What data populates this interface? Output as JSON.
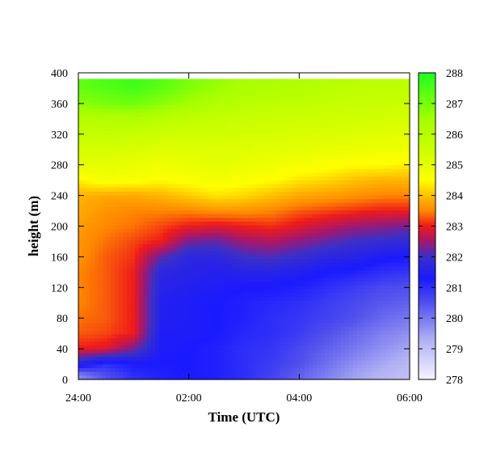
{
  "chart_data": {
    "type": "heatmap",
    "xlabel": "Time (UTC)",
    "ylabel": "height (m)",
    "x_ticks": [
      "24:00",
      "02:00",
      "04:00",
      "06:00"
    ],
    "x_range_hours": [
      0,
      6
    ],
    "y_ticks": [
      0,
      40,
      80,
      120,
      160,
      200,
      240,
      280,
      320,
      360,
      400
    ],
    "y_range": [
      0,
      400
    ],
    "colorbar": {
      "ticks": [
        278,
        279,
        280,
        281,
        282,
        283,
        284,
        285,
        286,
        287,
        288
      ],
      "range": [
        278,
        288
      ],
      "colormap": [
        {
          "value": 278.0,
          "color": "#f4f4ff"
        },
        {
          "value": 279.3,
          "color": "#b0b0f4"
        },
        {
          "value": 280.5,
          "color": "#5050ee"
        },
        {
          "value": 281.3,
          "color": "#1a1aff"
        },
        {
          "value": 282.0,
          "color": "#3a30c8"
        },
        {
          "value": 282.5,
          "color": "#a01870"
        },
        {
          "value": 283.0,
          "color": "#ee1a1a"
        },
        {
          "value": 283.5,
          "color": "#ff8800"
        },
        {
          "value": 284.0,
          "color": "#ffc000"
        },
        {
          "value": 284.5,
          "color": "#ffff00"
        },
        {
          "value": 285.3,
          "color": "#d4ff00"
        },
        {
          "value": 286.5,
          "color": "#a4ff00"
        },
        {
          "value": 288.0,
          "color": "#20ff20"
        }
      ]
    },
    "grid_time_hours": [
      0,
      0.5,
      1.0,
      1.5,
      2.0,
      2.5,
      3.0,
      3.5,
      4.0,
      4.5,
      5.0,
      5.5,
      6.0
    ],
    "grid_height_m": [
      5,
      20,
      40,
      60,
      80,
      100,
      120,
      140,
      160,
      180,
      200,
      220,
      240,
      260,
      280,
      300,
      320,
      340,
      360,
      380,
      392
    ],
    "temperature_k": [
      [
        279.8,
        280.5,
        281.0,
        281.2,
        281.3,
        281.2,
        281.0,
        280.7,
        280.3,
        279.9,
        279.5,
        279.2,
        279.0
      ],
      [
        281.6,
        281.0,
        281.3,
        281.3,
        281.3,
        281.2,
        281.0,
        280.8,
        280.5,
        280.1,
        279.7,
        279.4,
        279.1
      ],
      [
        283.0,
        282.9,
        282.3,
        281.4,
        281.3,
        281.2,
        281.0,
        280.9,
        280.6,
        280.3,
        280.0,
        279.7,
        279.4
      ],
      [
        283.3,
        283.2,
        283.0,
        281.4,
        281.4,
        281.3,
        281.1,
        281.0,
        280.8,
        280.5,
        280.2,
        279.9,
        279.7
      ],
      [
        283.4,
        283.3,
        283.0,
        281.5,
        281.4,
        281.3,
        281.2,
        281.0,
        280.9,
        280.7,
        280.5,
        280.2,
        280.0
      ],
      [
        283.5,
        283.3,
        283.0,
        281.5,
        281.4,
        281.3,
        281.2,
        281.1,
        281.0,
        280.8,
        280.6,
        280.4,
        280.3
      ],
      [
        283.5,
        283.3,
        283.0,
        281.6,
        281.5,
        281.4,
        281.3,
        281.3,
        281.2,
        281.0,
        280.8,
        280.6,
        280.5
      ],
      [
        283.5,
        283.3,
        283.0,
        281.7,
        281.6,
        281.5,
        281.6,
        281.6,
        281.5,
        281.3,
        281.2,
        281.0,
        280.9
      ],
      [
        283.6,
        283.3,
        283.1,
        282.2,
        281.7,
        281.7,
        282.0,
        282.1,
        281.9,
        281.7,
        281.6,
        281.4,
        281.3
      ],
      [
        283.6,
        283.4,
        283.2,
        283.0,
        282.3,
        282.2,
        282.5,
        282.6,
        282.4,
        282.2,
        282.0,
        281.9,
        281.8
      ],
      [
        283.7,
        283.5,
        283.4,
        283.2,
        283.0,
        282.9,
        283.0,
        283.1,
        282.9,
        282.7,
        282.5,
        282.4,
        282.3
      ],
      [
        283.8,
        283.6,
        283.5,
        283.5,
        283.5,
        283.6,
        283.6,
        283.5,
        283.3,
        283.2,
        283.1,
        283.0,
        283.0
      ],
      [
        283.9,
        283.8,
        283.8,
        283.9,
        284.1,
        284.3,
        284.2,
        284.0,
        283.8,
        283.7,
        283.6,
        283.5,
        283.5
      ],
      [
        284.4,
        284.7,
        284.6,
        284.5,
        284.6,
        284.7,
        284.6,
        284.5,
        284.3,
        284.2,
        284.0,
        283.9,
        283.9
      ],
      [
        285.0,
        285.0,
        284.9,
        284.8,
        284.9,
        285.0,
        284.9,
        284.8,
        284.7,
        284.6,
        284.5,
        284.5,
        284.4
      ],
      [
        285.3,
        285.3,
        285.2,
        285.1,
        285.1,
        285.1,
        285.1,
        285.0,
        285.0,
        284.9,
        284.9,
        284.8,
        284.8
      ],
      [
        285.7,
        285.7,
        285.6,
        285.5,
        285.4,
        285.4,
        285.3,
        285.3,
        285.2,
        285.2,
        285.1,
        285.1,
        285.0
      ],
      [
        286.1,
        286.2,
        286.2,
        286.0,
        285.8,
        285.7,
        285.6,
        285.5,
        285.5,
        285.4,
        285.4,
        285.3,
        285.3
      ],
      [
        286.8,
        287.0,
        287.1,
        286.8,
        286.5,
        286.2,
        286.0,
        285.9,
        285.8,
        285.7,
        285.6,
        285.6,
        285.5
      ],
      [
        287.2,
        287.4,
        287.6,
        287.3,
        286.9,
        286.6,
        286.3,
        286.2,
        286.1,
        286.0,
        285.9,
        285.8,
        285.8
      ],
      [
        287.3,
        287.5,
        287.7,
        287.4,
        287.0,
        286.7,
        286.4,
        286.3,
        286.2,
        286.1,
        286.0,
        285.9,
        285.9
      ]
    ]
  }
}
